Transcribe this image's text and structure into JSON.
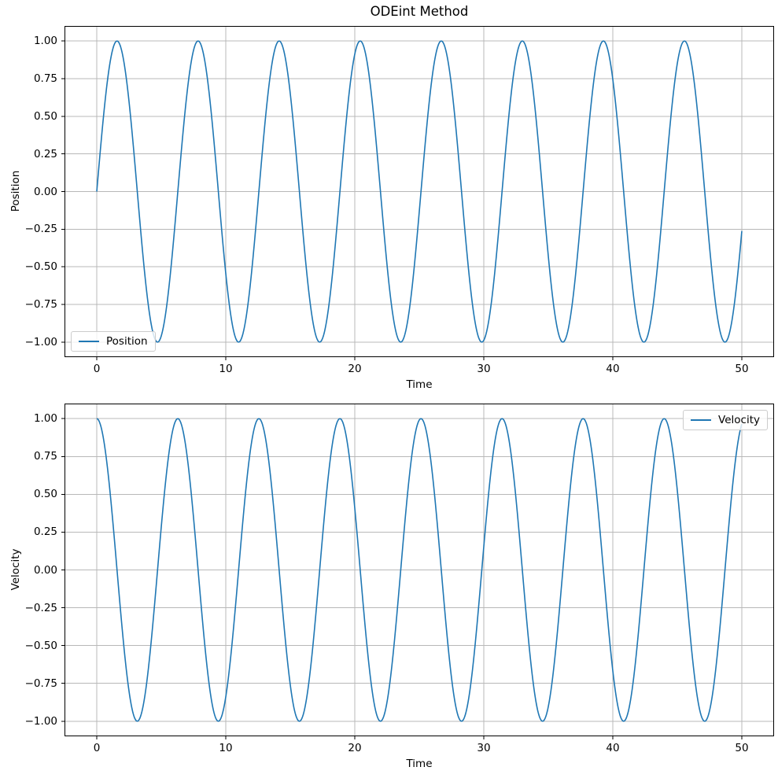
{
  "figure": {
    "background": "#ffffff"
  },
  "style": {
    "line_color": "#1f77b4",
    "grid_color": "#b8b8b8",
    "spine_color": "#000000",
    "tick_color": "#000000",
    "text_color": "#000000",
    "legend_border": "#cccccc"
  },
  "chart_data": [
    {
      "type": "line",
      "title": "ODEint Method",
      "xlabel": "Time",
      "ylabel": "Position",
      "xlim": [
        -2.5,
        52.5
      ],
      "ylim": [
        -1.1,
        1.1
      ],
      "grid": true,
      "xticks": {
        "values": [
          0,
          10,
          20,
          30,
          40,
          50
        ],
        "labels": [
          "0",
          "10",
          "20",
          "30",
          "40",
          "50"
        ]
      },
      "yticks": {
        "values": [
          1.0,
          0.75,
          0.5,
          0.25,
          0.0,
          -0.25,
          -0.5,
          -0.75,
          -1.0
        ],
        "labels": [
          "1.00",
          "0.75",
          "0.50",
          "0.25",
          "0.00",
          "−0.25",
          "−0.50",
          "−0.75",
          "−1.00"
        ]
      },
      "legend": {
        "location": "lower left"
      },
      "series": [
        {
          "name": "Position",
          "function": "sin",
          "amplitude": 1.0,
          "angular_frequency": 1.0,
          "phase": 0.0,
          "x_start": 0,
          "x_end": 50,
          "samples": 1200,
          "linewidth": 1.6,
          "color": "#1f77b4"
        }
      ]
    },
    {
      "type": "line",
      "title": "",
      "xlabel": "Time",
      "ylabel": "Velocity",
      "xlim": [
        -2.5,
        52.5
      ],
      "ylim": [
        -1.1,
        1.1
      ],
      "grid": true,
      "xticks": {
        "values": [
          0,
          10,
          20,
          30,
          40,
          50
        ],
        "labels": [
          "0",
          "10",
          "20",
          "30",
          "40",
          "50"
        ]
      },
      "yticks": {
        "values": [
          1.0,
          0.75,
          0.5,
          0.25,
          0.0,
          -0.25,
          -0.5,
          -0.75,
          -1.0
        ],
        "labels": [
          "1.00",
          "0.75",
          "0.50",
          "0.25",
          "0.00",
          "−0.25",
          "−0.50",
          "−0.75",
          "−1.00"
        ]
      },
      "legend": {
        "location": "upper right"
      },
      "series": [
        {
          "name": "Velocity",
          "function": "cos",
          "amplitude": 1.0,
          "angular_frequency": 1.0,
          "phase": 0.0,
          "x_start": 0,
          "x_end": 50,
          "samples": 1200,
          "linewidth": 1.6,
          "color": "#1f77b4"
        }
      ]
    }
  ]
}
